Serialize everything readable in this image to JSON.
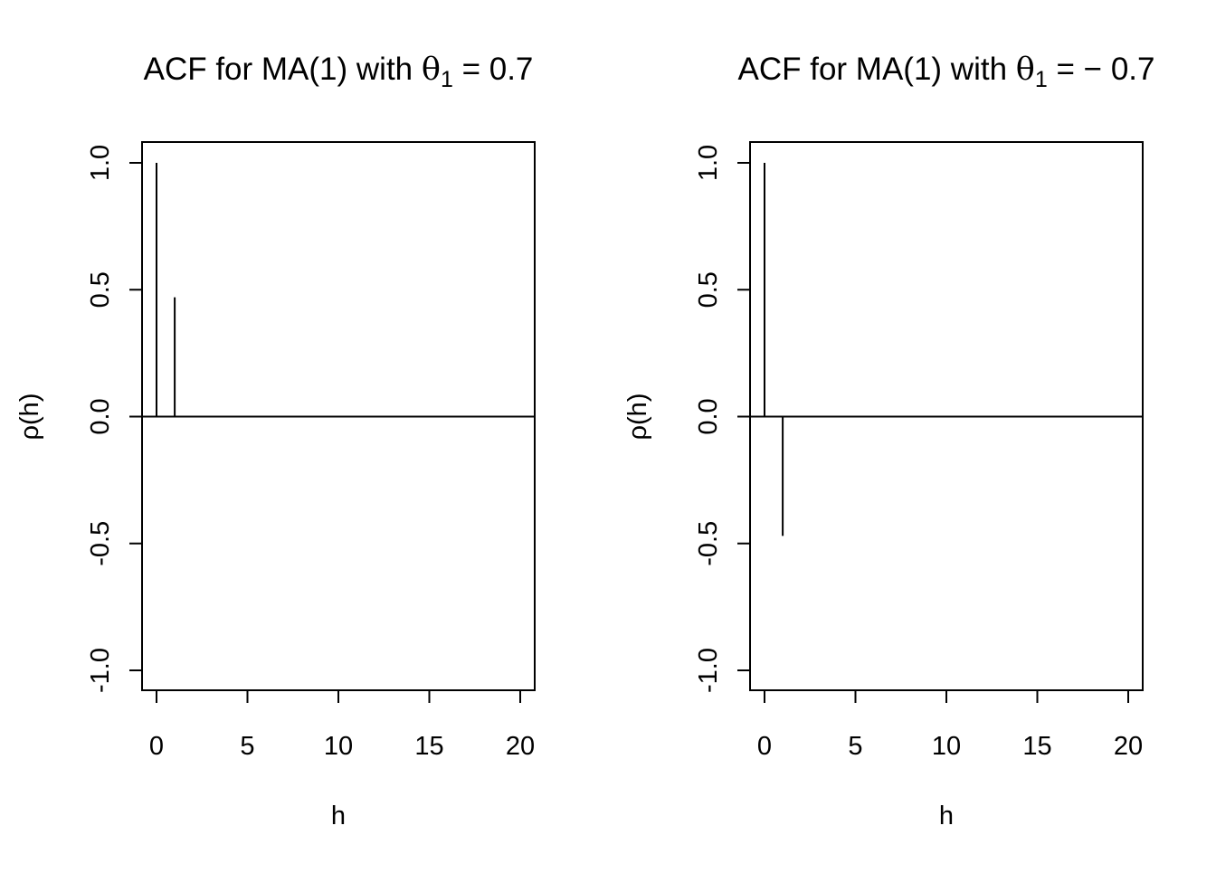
{
  "chart_data": [
    {
      "type": "bar",
      "title": "ACF for MA(1) with θ₁ = 0.7",
      "title_parts": {
        "main": "ACF for MA(1) with ",
        "symbol": "θ",
        "sub": "1",
        "rest": " = 0.7"
      },
      "xlabel": "h",
      "ylabel": "ρ(h)",
      "xlim": [
        0,
        20
      ],
      "ylim": [
        -1,
        1
      ],
      "x_ticks": [
        0,
        5,
        10,
        15,
        20
      ],
      "y_ticks": [
        -1.0,
        -0.5,
        0.0,
        0.5,
        1.0
      ],
      "x_tick_labels": [
        "0",
        "5",
        "10",
        "15",
        "20"
      ],
      "y_tick_labels": [
        "-1.0",
        "-0.5",
        "0.0",
        "0.5",
        "1.0"
      ],
      "x": [
        0,
        1,
        2,
        3,
        4,
        5,
        6,
        7,
        8,
        9,
        10,
        11,
        12,
        13,
        14,
        15,
        16,
        17,
        18,
        19,
        20
      ],
      "values": [
        1.0,
        0.47,
        0,
        0,
        0,
        0,
        0,
        0,
        0,
        0,
        0,
        0,
        0,
        0,
        0,
        0,
        0,
        0,
        0,
        0,
        0
      ],
      "zero_line": true,
      "grid": false
    },
    {
      "type": "bar",
      "title": "ACF for MA(1) with θ₁ = −0.7",
      "title_parts": {
        "main": "ACF for MA(1) with ",
        "symbol": "θ",
        "sub": "1",
        "rest": " = − 0.7"
      },
      "xlabel": "h",
      "ylabel": "ρ(h)",
      "xlim": [
        0,
        20
      ],
      "ylim": [
        -1,
        1
      ],
      "x_ticks": [
        0,
        5,
        10,
        15,
        20
      ],
      "y_ticks": [
        -1.0,
        -0.5,
        0.0,
        0.5,
        1.0
      ],
      "x_tick_labels": [
        "0",
        "5",
        "10",
        "15",
        "20"
      ],
      "y_tick_labels": [
        "-1.0",
        "-0.5",
        "0.0",
        "0.5",
        "1.0"
      ],
      "x": [
        0,
        1,
        2,
        3,
        4,
        5,
        6,
        7,
        8,
        9,
        10,
        11,
        12,
        13,
        14,
        15,
        16,
        17,
        18,
        19,
        20
      ],
      "values": [
        1.0,
        -0.47,
        0,
        0,
        0,
        0,
        0,
        0,
        0,
        0,
        0,
        0,
        0,
        0,
        0,
        0,
        0,
        0,
        0,
        0,
        0
      ],
      "zero_line": true,
      "grid": false
    }
  ]
}
